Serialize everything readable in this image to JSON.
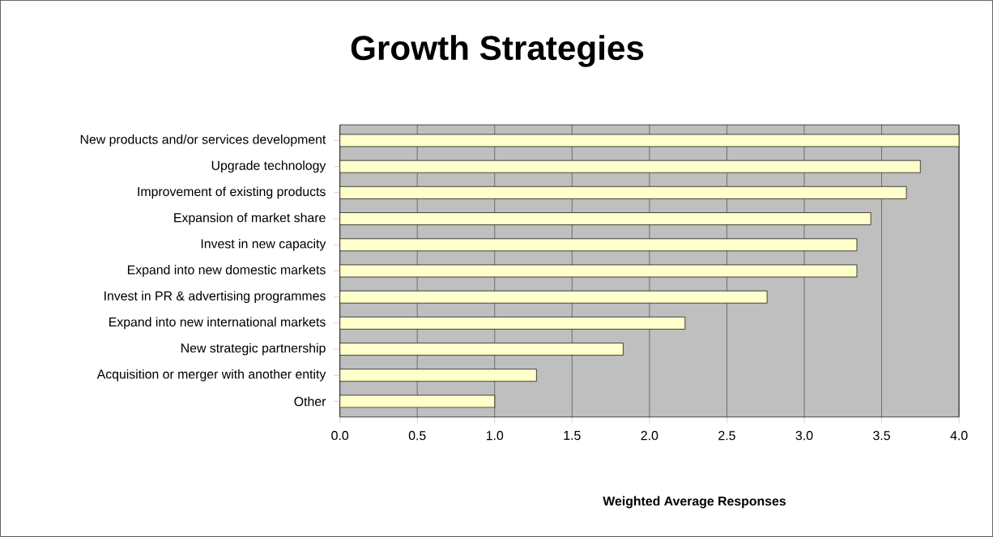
{
  "chart_data": {
    "type": "bar",
    "orientation": "horizontal",
    "title": "Growth Strategies",
    "xlabel": "Weighted Average Responses",
    "categories": [
      "New products and/or services development",
      "Upgrade technology",
      "Improvement of existing products",
      "Expansion of market share",
      "Invest in  new capacity",
      "Expand into new domestic markets",
      "Invest in PR & advertising programmes",
      "Expand into new international markets",
      "New strategic partnership",
      "Acquisition or merger with another entity",
      "Other"
    ],
    "values": [
      4.0,
      3.75,
      3.66,
      3.43,
      3.34,
      3.34,
      2.76,
      2.23,
      1.83,
      1.27,
      1.0
    ],
    "color": "#ffffcc",
    "xlim": [
      0,
      4
    ],
    "xticks": [
      {
        "value": 0,
        "label": "0.0"
      },
      {
        "value": 0.5,
        "label": "0.5"
      },
      {
        "value": 1,
        "label": "1.0"
      },
      {
        "value": 1.5,
        "label": "1.5"
      },
      {
        "value": 2,
        "label": "2.0"
      },
      {
        "value": 2.5,
        "label": "2.5"
      },
      {
        "value": 3,
        "label": "3.0"
      },
      {
        "value": 3.5,
        "label": "3.5"
      },
      {
        "value": 4,
        "label": "4.0"
      }
    ],
    "grid": "x"
  }
}
